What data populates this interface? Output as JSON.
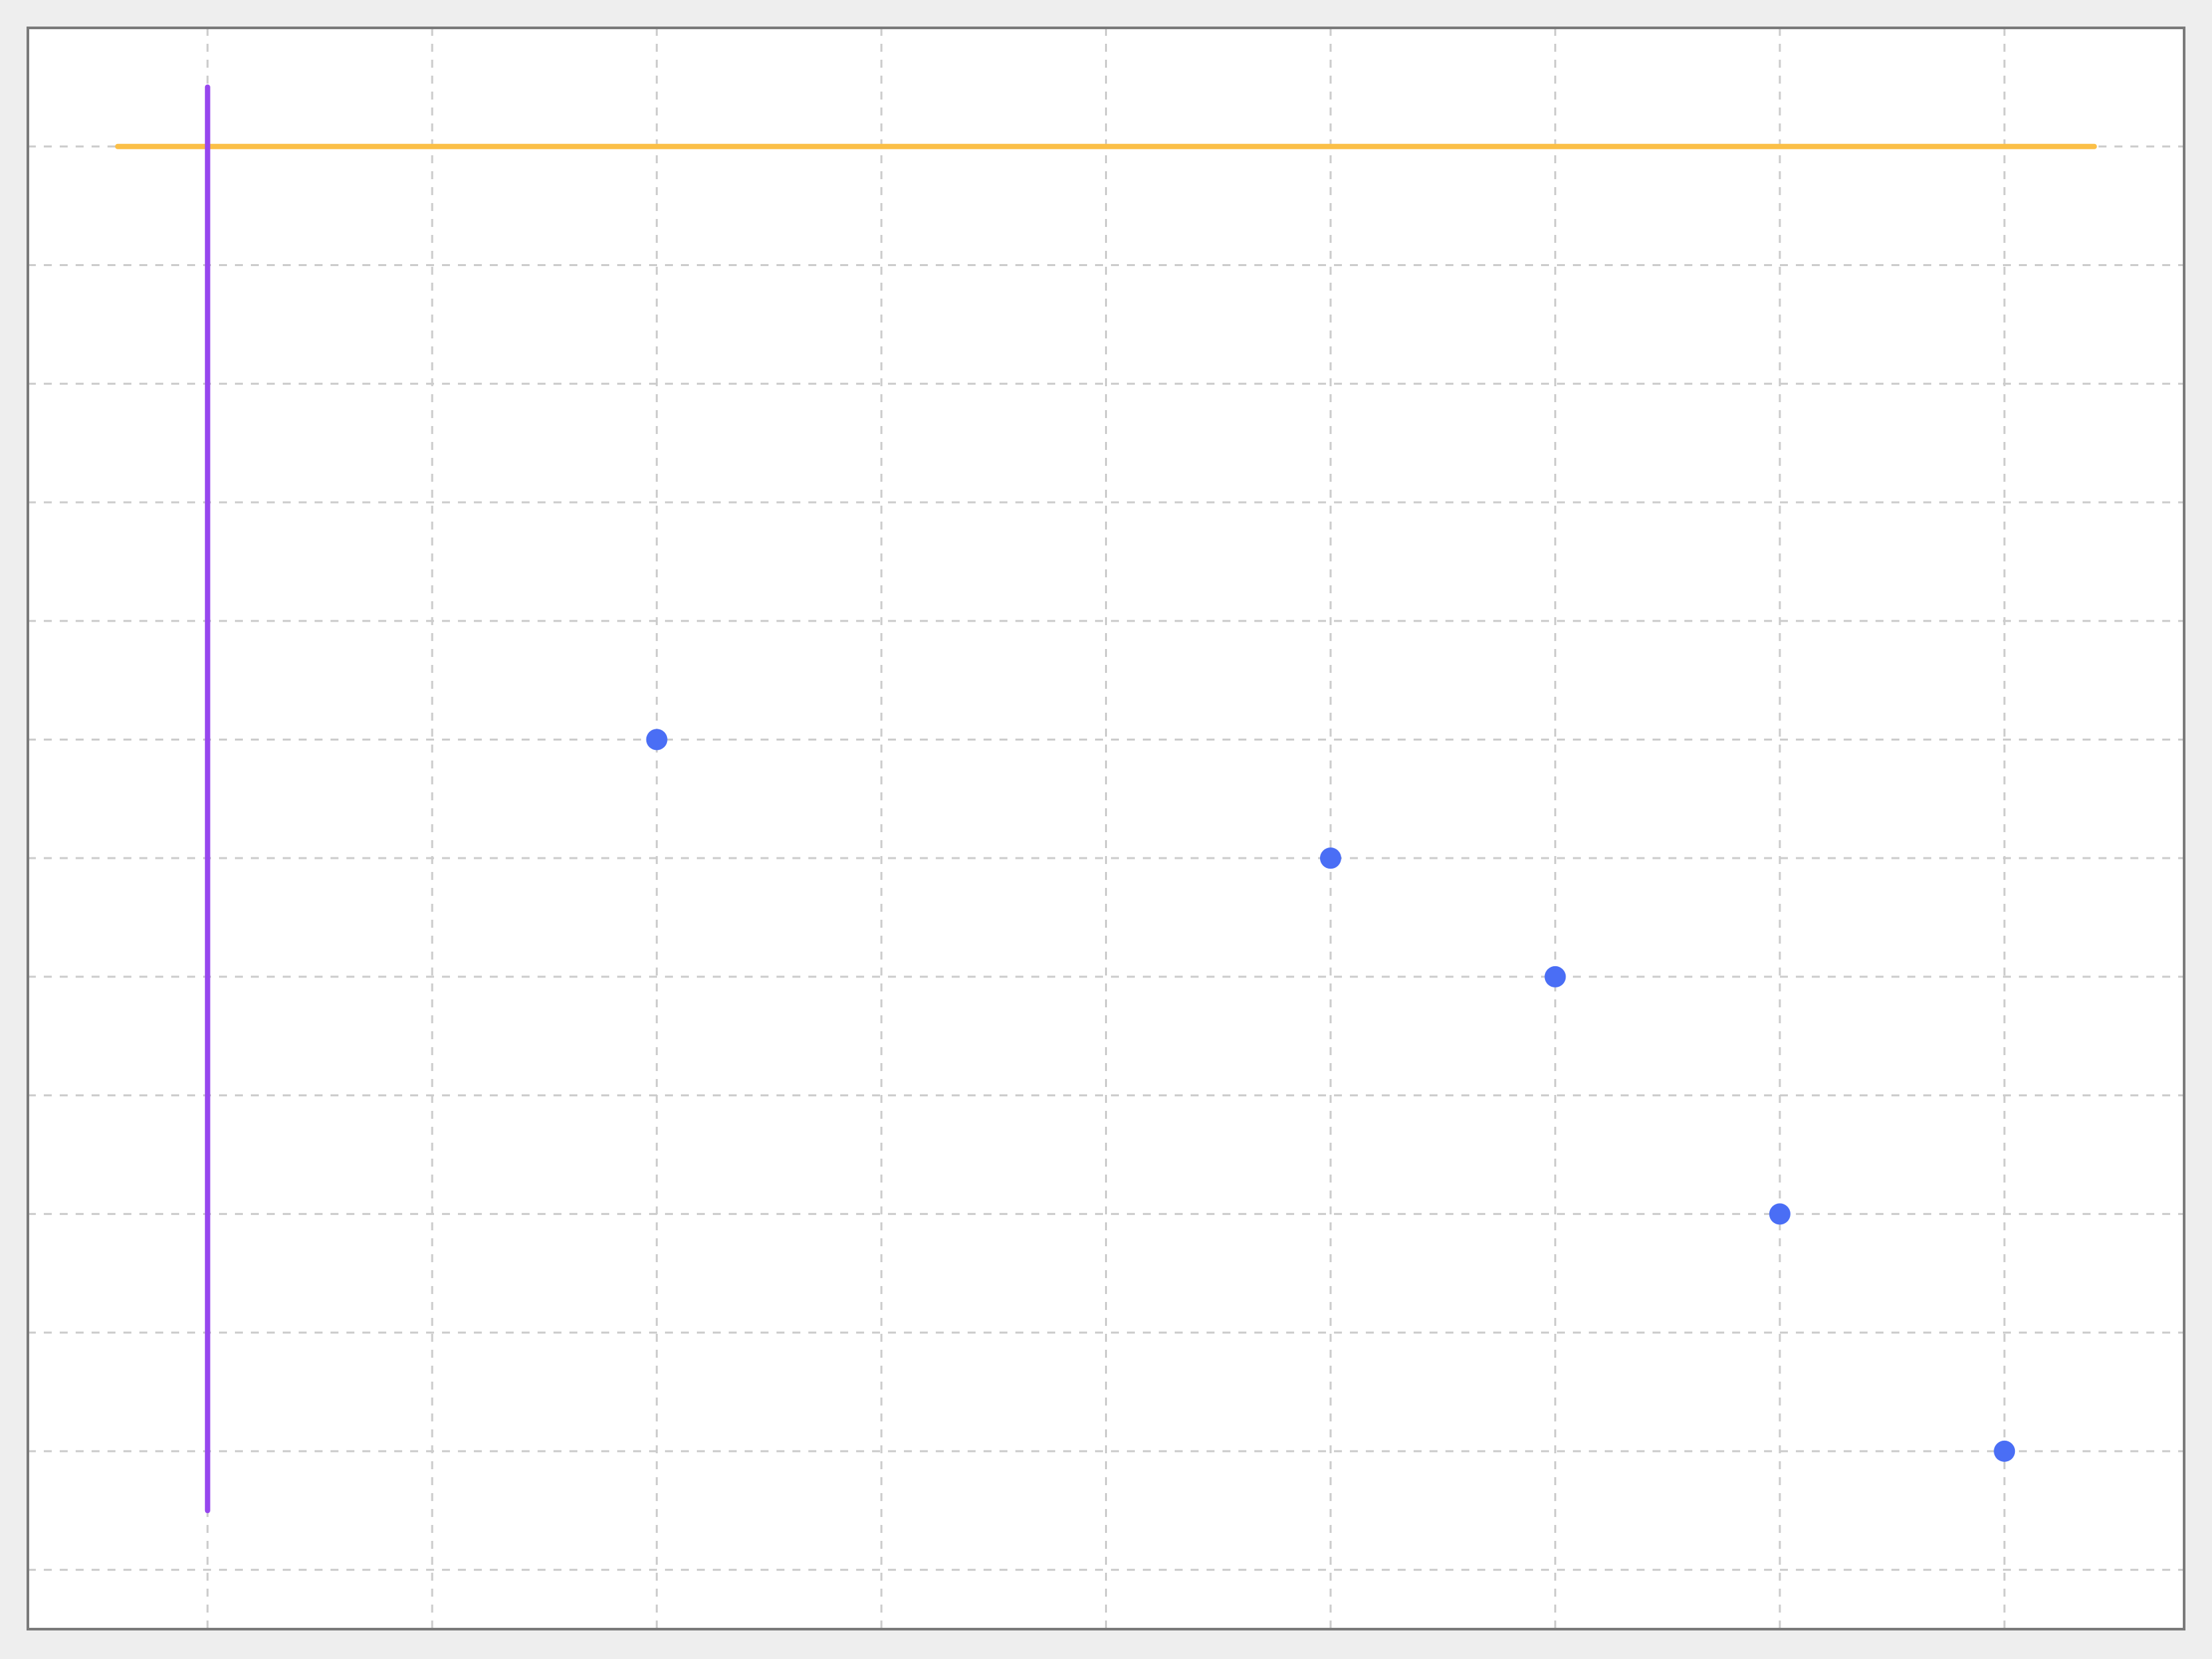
{
  "chart_data": {
    "type": "scatter",
    "title": "",
    "xlabel": "",
    "ylabel": "",
    "xlim": [
      -0.8,
      8.8
    ],
    "ylim": [
      -0.05,
      1.3
    ],
    "x_grid_ticks": [
      0,
      1,
      2,
      3,
      4,
      5,
      6,
      7,
      8
    ],
    "y_grid_ticks": [
      0.0,
      0.1,
      0.2,
      0.3,
      0.4,
      0.5,
      0.6,
      0.7,
      0.8,
      0.9,
      1.0,
      1.1,
      1.2,
      1.3
    ],
    "grid": true,
    "grid_style": "dashed",
    "legend": "none",
    "series": [
      {
        "x": [
          2,
          5,
          6,
          7,
          8
        ],
        "y": [
          0.7,
          0.6,
          0.5,
          0.3,
          0.1
        ],
        "color": "#4a6ef5"
      }
    ],
    "reference_lines": [
      {
        "orientation": "horizontal",
        "y": 1.2,
        "x_range": [
          -0.4,
          8.4
        ],
        "color": "#fbbf47"
      },
      {
        "orientation": "vertical",
        "x": 0,
        "y_range": [
          0.05,
          1.25
        ],
        "color": "#9747ee"
      }
    ],
    "colors": {
      "page_background": "#eeeeee",
      "plot_background": "#ffffff",
      "plot_border": "#7a7a7a",
      "grid": "#cccccc"
    }
  }
}
